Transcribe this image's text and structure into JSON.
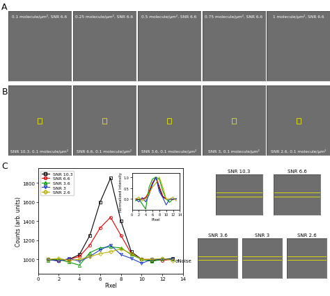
{
  "panel_labels": [
    "A",
    "B",
    "C"
  ],
  "panel_A": {
    "images": [
      "0.1 molecule/μm², SNR 6.6",
      "0.25 molecule/μm², SNR 6.6",
      "0.5 molecule/μm², SNR 6.6",
      "0.75 molecule/μm², SNR 6.6",
      "1 molecule/μm², SNR 6.6"
    ]
  },
  "panel_B": {
    "images": [
      "SNR 10.3, 0.1 molecule/μm²",
      "SNR 6.6, 0.1 molecule/μm²",
      "SNR 3.6, 0.1 molecule/μm²",
      "SNR 3, 0.1 molecule/μm²",
      "SNR 2.6, 0.1 molecule/μm²"
    ]
  },
  "chart_data": [
    {
      "type": "line",
      "x_label": "Pixel",
      "y_label": "Counts (arb. units)",
      "x": [
        1,
        2,
        3,
        4,
        5,
        6,
        7,
        8,
        9,
        10,
        11,
        12,
        13
      ],
      "xlim": [
        0,
        14
      ],
      "xticks": [
        0,
        2,
        4,
        6,
        8,
        10,
        12,
        14
      ],
      "ylim": [
        850,
        1950
      ],
      "yticks": [
        1000,
        1200,
        1400,
        1600,
        1800
      ],
      "legend": "upper left",
      "annotation": "σNoise",
      "series": [
        {
          "name": "SNR 10.3",
          "color": "#000000",
          "marker": "s",
          "values": [
            1000,
            990,
            1000,
            1050,
            1250,
            1600,
            1850,
            1400,
            1080,
            1000,
            990,
            1000,
            1010
          ]
        },
        {
          "name": "SNR 6.6",
          "color": "#e00000",
          "marker": "o",
          "values": [
            1000,
            990,
            1000,
            1030,
            1150,
            1330,
            1440,
            1250,
            1060,
            1000,
            1000,
            990,
            1000
          ]
        },
        {
          "name": "SNR 3.6",
          "color": "#00a000",
          "marker": "^",
          "values": [
            990,
            1000,
            970,
            940,
            1070,
            1120,
            1130,
            1120,
            1050,
            1000,
            980,
            1000,
            1000
          ]
        },
        {
          "name": "SNR 3",
          "color": "#1f3fd0",
          "marker": "v",
          "values": [
            1000,
            980,
            1010,
            980,
            1030,
            1100,
            1150,
            1050,
            1010,
            960,
            1000,
            1000,
            1000
          ]
        },
        {
          "name": "SNR 2.6",
          "color": "#b8b000",
          "marker": "D",
          "values": [
            1000,
            1010,
            990,
            1000,
            1030,
            1060,
            1080,
            1110,
            1060,
            1000,
            1000,
            1010,
            990
          ]
        }
      ]
    },
    {
      "type": "line",
      "x_label": "Pixel",
      "y_label": "Normalized Intensity",
      "x": [
        1,
        2,
        3,
        4,
        5,
        6,
        7,
        8,
        9,
        10,
        11,
        12,
        13
      ],
      "xlim": [
        0,
        14
      ],
      "xticks": [
        0,
        2,
        4,
        6,
        8,
        10,
        12,
        14
      ],
      "ylim": [
        -0.5,
        1.2
      ],
      "yticks": [
        0.0,
        0.5,
        1.0
      ],
      "series": [
        {
          "name": "SNR 10.3",
          "color": "#000000",
          "values": [
            0.0,
            -0.01,
            0.0,
            0.06,
            0.29,
            0.71,
            1.0,
            0.47,
            0.09,
            0.0,
            -0.01,
            0.0,
            0.01
          ]
        },
        {
          "name": "SNR 6.6",
          "color": "#e00000",
          "values": [
            0.0,
            -0.02,
            0.0,
            0.07,
            0.34,
            0.75,
            1.0,
            0.57,
            0.14,
            0.0,
            0.0,
            -0.02,
            0.0
          ]
        },
        {
          "name": "SNR 3.6",
          "color": "#00a000",
          "values": [
            -0.08,
            0.0,
            -0.23,
            -0.46,
            0.54,
            0.92,
            1.0,
            0.92,
            0.38,
            0.0,
            -0.15,
            0.0,
            0.0
          ]
        },
        {
          "name": "SNR 3",
          "color": "#1f3fd0",
          "values": [
            0.0,
            -0.13,
            0.07,
            -0.13,
            0.2,
            0.67,
            1.0,
            0.33,
            0.07,
            -0.27,
            0.0,
            0.0,
            0.0
          ]
        },
        {
          "name": "SNR 2.6",
          "color": "#b8b000",
          "values": [
            0.0,
            0.09,
            -0.09,
            0.0,
            0.27,
            0.55,
            0.73,
            1.0,
            0.55,
            0.0,
            0.0,
            0.09,
            -0.09
          ]
        }
      ]
    }
  ],
  "crops": {
    "labels": [
      "SNR 10.3",
      "SNR 6.6",
      "SNR 3.6",
      "SNR 3",
      "SNR 2.6"
    ]
  }
}
